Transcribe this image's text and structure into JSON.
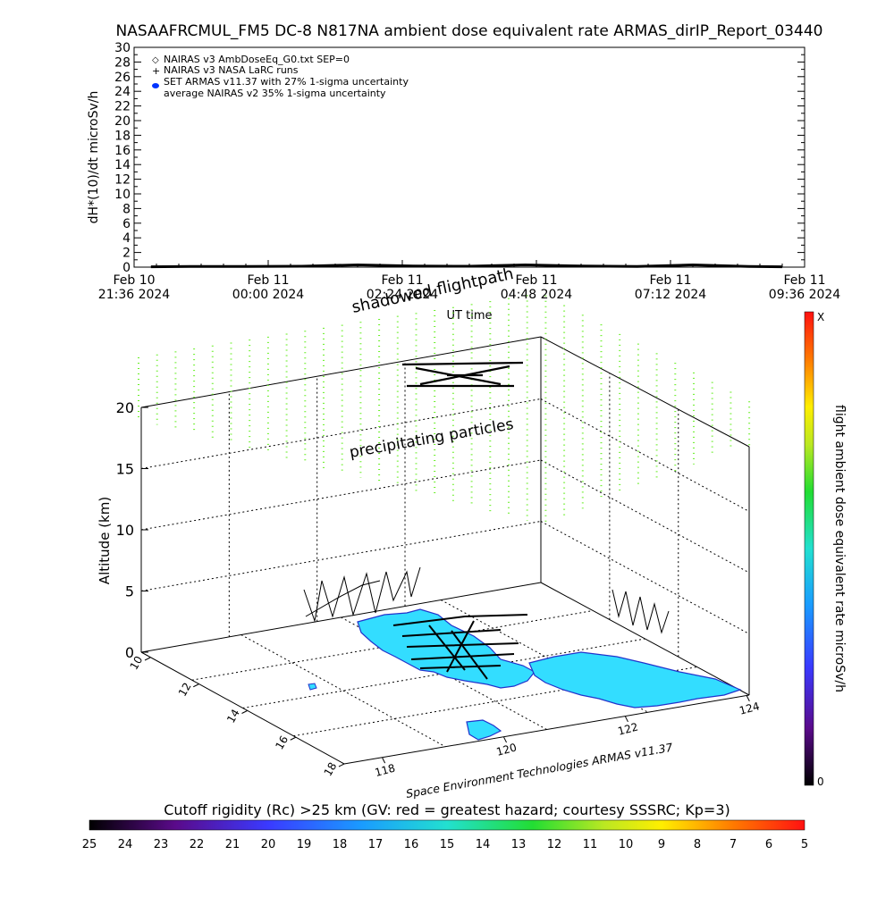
{
  "title": "NASAAFRCMUL_FM5 DC-8   N817NA ambient dose equivalent rate ARMAS_dirIP_Report_03440",
  "top_panel": {
    "ylabel": "dH*(10)/dt microSv/h",
    "xlabel": "UT time",
    "y_ticks": [
      "0",
      "2",
      "4",
      "6",
      "8",
      "10",
      "12",
      "14",
      "16",
      "18",
      "20",
      "22",
      "24",
      "26",
      "28",
      "30"
    ],
    "x_ticks": [
      {
        "line1": "Feb 10",
        "line2": "21:36 2024"
      },
      {
        "line1": "Feb 11",
        "line2": "00:00 2024"
      },
      {
        "line1": "Feb 11",
        "line2": "02:24 2024"
      },
      {
        "line1": "Feb 11",
        "line2": "04:48 2024"
      },
      {
        "line1": "Feb 11",
        "line2": "07:12 2024"
      },
      {
        "line1": "Feb 11",
        "line2": "09:36 2024"
      }
    ],
    "legend": [
      {
        "symbol": "◇",
        "text": "NAIRAS v3 AmbDoseEq_G0.txt SEP=0"
      },
      {
        "symbol": "+",
        "text": "NAIRAS v3 NASA LaRC runs"
      },
      {
        "symbol": "●",
        "text": "SET ARMAS v11.37 with 27% 1-sigma uncertainty",
        "color": "#0033ff"
      },
      {
        "symbol": "",
        "text": "average NAIRAS v2 35% 1-sigma uncertainty"
      }
    ]
  },
  "scene": {
    "shadowed_label": "shadowed flightpath",
    "precip_label": "precipitating particles",
    "zlabel": "Altitude (km)",
    "z_ticks": [
      "0",
      "5",
      "10",
      "15",
      "20"
    ],
    "lat_ticks": [
      "10",
      "12",
      "14",
      "16",
      "18"
    ],
    "lon_ticks": [
      "118",
      "120",
      "122",
      "124"
    ],
    "credit": "Space Environment Technologies ARMAS v11.37",
    "land_color": "#33ddff",
    "outline_color": "#2233cc",
    "precip_color": "#66ee22"
  },
  "colorbar": {
    "label": "flight ambient dose equivalent rate microSv/h",
    "top_label": "X",
    "bottom_label": "0"
  },
  "bottom_bar": {
    "title": "Cutoff rigidity (Rc) >25 km (GV: red = greatest hazard; courtesy SSSRC; Kp=3)",
    "ticks": [
      "25",
      "24",
      "23",
      "22",
      "21",
      "20",
      "19",
      "18",
      "17",
      "16",
      "15",
      "14",
      "13",
      "12",
      "11",
      "10",
      "9",
      "8",
      "7",
      "6",
      "5"
    ]
  },
  "chart_data": {
    "type": "line",
    "title": "NASAAFRCMUL_FM5 DC-8   N817NA ambient dose equivalent rate ARMAS_dirIP_Report_03440",
    "xlabel": "UT time",
    "ylabel": "dH*(10)/dt microSv/h",
    "ylim": [
      0,
      30
    ],
    "xlim": [
      "Feb 10 21:36 2024",
      "Feb 11 09:36 2024"
    ],
    "series": [
      {
        "name": "SET ARMAS v11.37 with 27% 1-sigma uncertainty",
        "x_hours_since_start": [
          0.3,
          1,
          2,
          3,
          4,
          5,
          6,
          7,
          8,
          9,
          10,
          11,
          11.6
        ],
        "values": [
          0.05,
          0.08,
          0.1,
          0.12,
          0.3,
          0.15,
          0.12,
          0.3,
          0.15,
          0.1,
          0.3,
          0.1,
          0.05
        ]
      }
    ],
    "legend_position": "top-left"
  }
}
